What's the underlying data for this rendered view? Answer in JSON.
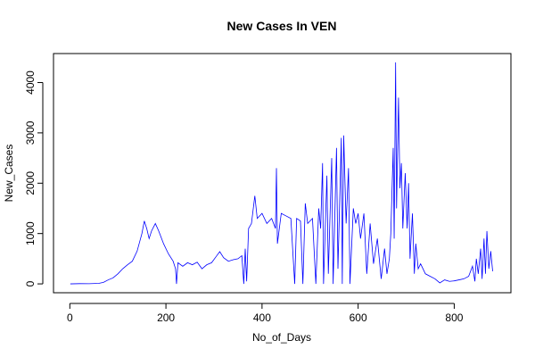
{
  "chart_data": {
    "type": "line",
    "title": "New Cases In VEN",
    "x_label": "No_of_Days",
    "y_label": "New_Cases",
    "x": [
      1,
      20,
      40,
      60,
      70,
      80,
      90,
      100,
      110,
      120,
      130,
      140,
      150,
      155,
      160,
      165,
      170,
      178,
      185,
      195,
      205,
      215,
      220,
      222,
      225,
      235,
      245,
      255,
      265,
      275,
      285,
      295,
      305,
      312,
      320,
      330,
      340,
      350,
      358,
      362,
      365,
      368,
      372,
      378,
      385,
      390,
      400,
      410,
      420,
      428,
      430,
      432,
      440,
      450,
      460,
      468,
      472,
      480,
      485,
      490,
      495,
      505,
      512,
      518,
      522,
      526,
      528,
      535,
      538,
      545,
      548,
      555,
      558,
      565,
      567,
      570,
      575,
      580,
      583,
      590,
      595,
      600,
      605,
      612,
      618,
      625,
      632,
      640,
      648,
      655,
      660,
      665,
      668,
      673,
      675,
      678,
      680,
      684,
      687,
      690,
      693,
      698,
      702,
      705,
      708,
      713,
      717,
      720,
      725,
      730,
      740,
      750,
      760,
      770,
      780,
      790,
      800,
      810,
      820,
      830,
      838,
      843,
      846,
      850,
      855,
      858,
      862,
      865,
      868,
      872,
      876,
      880
    ],
    "series": [
      {
        "name": "New_Cases",
        "color": "#0000ff",
        "values": [
          0,
          5,
          3,
          10,
          30,
          80,
          120,
          200,
          300,
          380,
          450,
          650,
          1000,
          1250,
          1100,
          900,
          1050,
          1200,
          1050,
          800,
          600,
          450,
          300,
          0,
          420,
          350,
          420,
          380,
          430,
          300,
          380,
          420,
          550,
          640,
          520,
          450,
          480,
          500,
          560,
          0,
          700,
          50,
          1100,
          1200,
          1750,
          1300,
          1400,
          1200,
          1300,
          1100,
          2300,
          800,
          1400,
          1350,
          1300,
          0,
          1300,
          1250,
          0,
          1600,
          1200,
          1300,
          0,
          1500,
          1100,
          2400,
          0,
          2150,
          200,
          2500,
          0,
          2700,
          300,
          2900,
          0,
          2950,
          1200,
          2300,
          0,
          1500,
          1200,
          1400,
          900,
          1400,
          200,
          1200,
          400,
          900,
          100,
          700,
          200,
          500,
          1000,
          2700,
          900,
          4400,
          1500,
          3700,
          1900,
          2400,
          1100,
          2200,
          1100,
          2000,
          500,
          1400,
          200,
          800,
          300,
          400,
          200,
          150,
          100,
          20,
          80,
          50,
          60,
          80,
          100,
          150,
          350,
          50,
          500,
          200,
          700,
          100,
          900,
          200,
          1050,
          300,
          650,
          250
        ]
      }
    ],
    "xlim": [
      -34,
      918
    ],
    "ylim": [
      -176,
      4576
    ],
    "xticks": [
      0,
      200,
      400,
      600,
      800
    ],
    "yticks": [
      0,
      1000,
      2000,
      3000,
      4000
    ]
  }
}
